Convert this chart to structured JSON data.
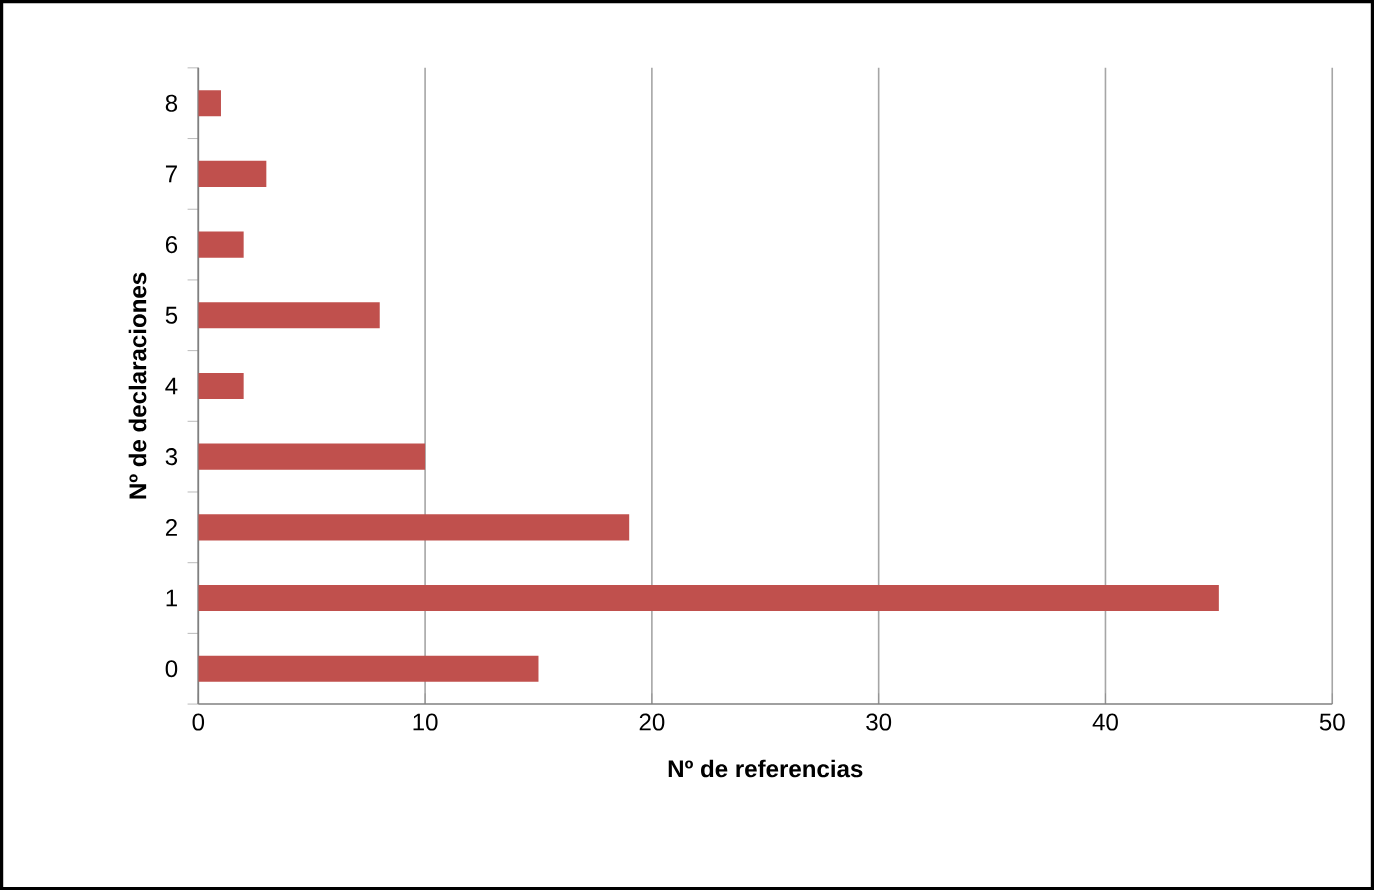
{
  "chart_data": {
    "type": "bar",
    "orientation": "horizontal",
    "xlabel": "Nº de referencias",
    "ylabel": "Nº de declaraciones",
    "categories": [
      "8",
      "7",
      "6",
      "5",
      "4",
      "3",
      "2",
      "1",
      "0"
    ],
    "values": [
      1,
      3,
      2,
      8,
      2,
      10,
      19,
      45,
      15
    ],
    "color": "#c0504d",
    "xlim": [
      0,
      50
    ],
    "xticks": [
      0,
      10,
      20,
      30,
      40,
      50
    ],
    "grid": "x"
  }
}
